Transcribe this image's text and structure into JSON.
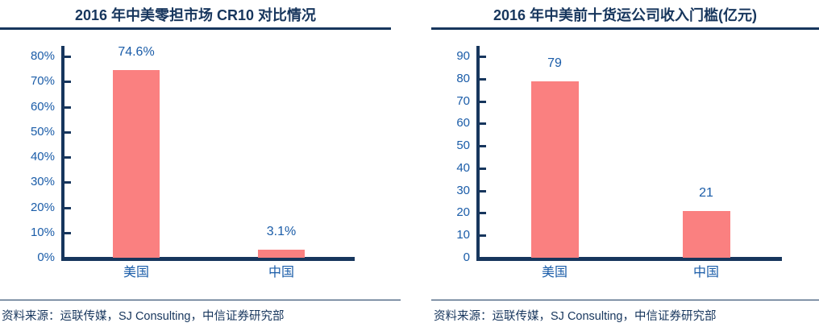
{
  "colors": {
    "navy": "#17365D",
    "label_blue": "#1A5CA8",
    "bar_salmon": "#FA8080",
    "background": "#FFFFFF"
  },
  "chart_data": [
    {
      "type": "bar",
      "title": "2016 年中美零担市场 CR10 对比情况",
      "categories": [
        "美国",
        "中国"
      ],
      "values": [
        74.6,
        3.1
      ],
      "bar_labels": [
        "74.6%",
        "3.1%"
      ],
      "ylim": [
        0,
        80
      ],
      "ytick_values": [
        0,
        10,
        20,
        30,
        40,
        50,
        60,
        70,
        80
      ],
      "ytick_labels": [
        "0%",
        "10%",
        "20%",
        "30%",
        "40%",
        "50%",
        "60%",
        "70%",
        "80%"
      ],
      "xlabel": "",
      "ylabel": "",
      "grid": false,
      "legend": null,
      "source": "资料来源：运联传媒，SJ Consulting，中信证券研究部"
    },
    {
      "type": "bar",
      "title": "2016 年中美前十货运公司收入门槛(亿元)",
      "categories": [
        "美国",
        "中国"
      ],
      "values": [
        79,
        21
      ],
      "bar_labels": [
        "79",
        "21"
      ],
      "ylim": [
        0,
        90
      ],
      "ytick_values": [
        0,
        10,
        20,
        30,
        40,
        50,
        60,
        70,
        80,
        90
      ],
      "ytick_labels": [
        "0",
        "10",
        "20",
        "30",
        "40",
        "50",
        "60",
        "70",
        "80",
        "90"
      ],
      "xlabel": "",
      "ylabel": "",
      "grid": false,
      "legend": null,
      "source": "资料来源：运联传媒，SJ Consulting，中信证券研究部"
    }
  ]
}
